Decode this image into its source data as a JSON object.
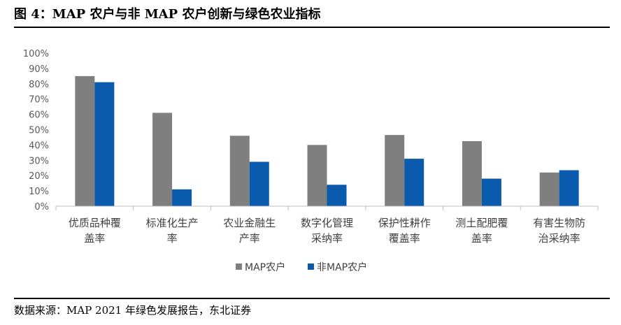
{
  "figure": {
    "title": "图 4：MAP 农户与非 MAP 农户创新与绿色农业指标",
    "source": "数据来源：MAP 2021 年绿色发展报告，东北证券"
  },
  "colors": {
    "map": "#7f7f7f",
    "nonmap": "#0a5aad",
    "axis": "#bfbfbf",
    "text": "#404040"
  },
  "chart_data": {
    "type": "bar",
    "title": "",
    "xlabel": "",
    "ylabel": "",
    "ylim": [
      0,
      100
    ],
    "yticks": [
      "0%",
      "10%",
      "20%",
      "30%",
      "40%",
      "50%",
      "60%",
      "70%",
      "80%",
      "90%",
      "100%"
    ],
    "categories": [
      [
        "优质品种覆",
        "盖率"
      ],
      [
        "标准化生产",
        "率"
      ],
      [
        "农业金融生",
        "产率"
      ],
      [
        "数字化管理",
        "采纳率"
      ],
      [
        "保护性耕作",
        "覆盖率"
      ],
      [
        "测土配肥覆",
        "盖率"
      ],
      [
        "有害生物防",
        "治采纳率"
      ]
    ],
    "series": [
      {
        "name": "MAP农户",
        "values": [
          85,
          61,
          46,
          40,
          46.5,
          42.5,
          22
        ]
      },
      {
        "name": "非MAP农户",
        "values": [
          81,
          11,
          29,
          14,
          31,
          18,
          23.5
        ]
      }
    ],
    "legend_position": "bottom"
  }
}
